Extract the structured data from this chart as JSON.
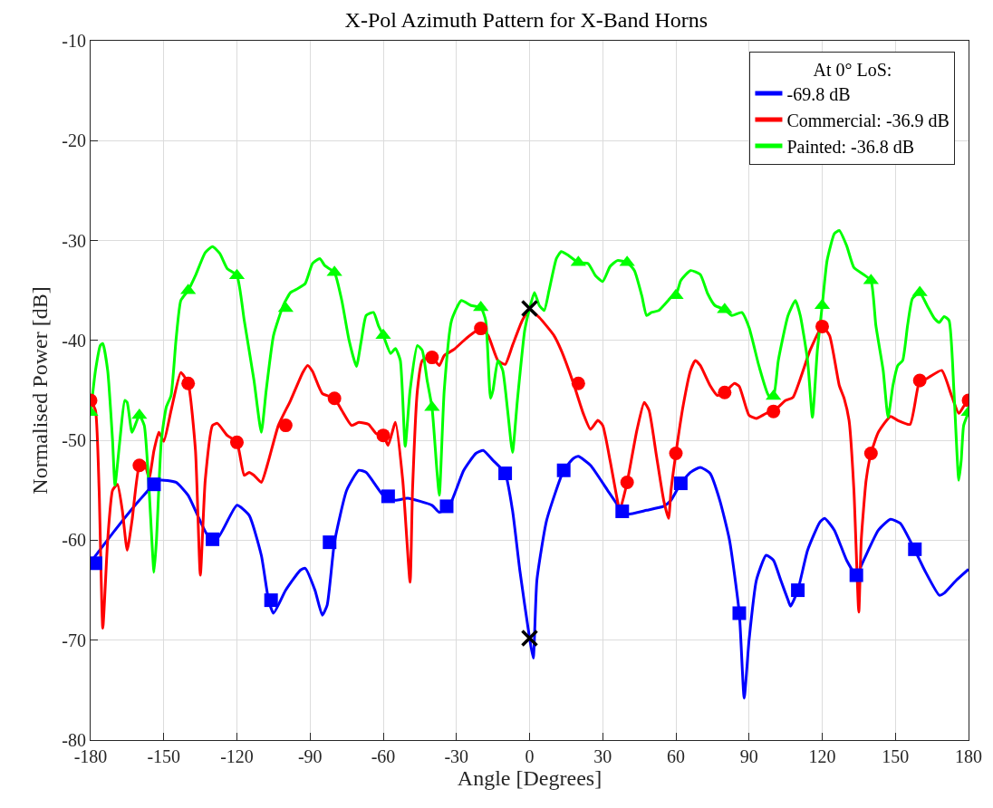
{
  "chart_data": {
    "type": "line",
    "title": "X-Pol Azimuth Pattern for X-Band Horns",
    "xlabel": "Angle [Degrees]",
    "ylabel": "Normalised Power [dB]",
    "legend_title": "At 0° LoS:",
    "xlim": [
      -180,
      180
    ],
    "xticks": [
      -180,
      -150,
      -120,
      -90,
      -60,
      -30,
      0,
      30,
      60,
      90,
      120,
      150,
      180
    ],
    "ylim": [
      -80,
      -10
    ],
    "yticks": [
      -80,
      -70,
      -60,
      -50,
      -40,
      -30,
      -20,
      -10
    ],
    "grid": true,
    "legend": "top right",
    "series": [
      {
        "name": "-69.8 dB",
        "color": "#0000ff",
        "x": [
          -180,
          -170,
          -160,
          -152,
          -145,
          -140,
          -132,
          -128,
          -120,
          -115,
          -110,
          -107,
          -105,
          -100,
          -94,
          -92,
          -88,
          -85,
          -83,
          -80,
          -75,
          -70,
          -67,
          -60,
          -55,
          -50,
          -40,
          -37,
          -33,
          -27,
          -22,
          -19,
          -15,
          -10,
          -7,
          -4,
          0,
          1.5,
          3,
          7,
          14,
          18,
          20,
          25,
          32,
          38,
          40,
          48,
          55,
          58,
          62,
          66,
          70,
          74,
          78,
          82,
          86,
          88,
          90,
          93,
          97,
          100,
          103,
          106,
          107,
          110,
          114,
          119,
          121,
          125,
          130,
          134,
          137,
          143,
          148,
          152,
          158,
          162,
          168,
          170,
          175,
          180
        ],
        "values": [
          -62.2,
          -59,
          -56,
          -54,
          -54.2,
          -55.5,
          -59.5,
          -59.8,
          -56.5,
          -57.5,
          -61.5,
          -66,
          -67.3,
          -65,
          -63,
          -62.8,
          -65,
          -67.5,
          -66.5,
          -60.2,
          -55,
          -53,
          -53.2,
          -55.5,
          -56,
          -55.8,
          -56.5,
          -57.2,
          -56.6,
          -53,
          -51.3,
          -51,
          -52,
          -53.3,
          -57,
          -63,
          -69.8,
          -71.8,
          -64,
          -58,
          -53,
          -51.8,
          -51.6,
          -52.5,
          -55,
          -57.1,
          -57.4,
          -57,
          -56.6,
          -56,
          -54.3,
          -53.2,
          -52.7,
          -53.3,
          -56,
          -60,
          -67.3,
          -75.8,
          -70,
          -64,
          -61.5,
          -62,
          -64,
          -66,
          -66.6,
          -65,
          -61,
          -58.2,
          -57.8,
          -59,
          -62,
          -63.5,
          -62,
          -59,
          -57.9,
          -58.3,
          -61,
          -63,
          -65.5,
          -65.3,
          -64,
          -62.9
        ]
      },
      {
        "name": "Commercial: -36.9 dB",
        "color": "#ff0000",
        "x": [
          -180,
          -178,
          -176.5,
          -175,
          -173,
          -171,
          -169,
          -167,
          -165,
          -163,
          -160,
          -158,
          -156,
          -154,
          -152,
          -150,
          -147,
          -143,
          -140,
          -137,
          -135,
          -133,
          -130,
          -128,
          -124,
          -120,
          -117,
          -115,
          -113,
          -110,
          -107,
          -103,
          -98,
          -93,
          -91,
          -89,
          -85,
          -80,
          -77,
          -73,
          -70,
          -66,
          -63,
          -60,
          -58,
          -55,
          -52,
          -49,
          -48,
          -46,
          -44,
          -40,
          -37,
          -35,
          -31,
          -26,
          -20,
          -17,
          -13,
          -10,
          -7,
          -3,
          0,
          4,
          10,
          13,
          18,
          22,
          25,
          28,
          30,
          33,
          36,
          37,
          40,
          44,
          47,
          49,
          52,
          55,
          57,
          58,
          60,
          63,
          66,
          68,
          70,
          74,
          77,
          80,
          84,
          86,
          90,
          93,
          97,
          100,
          105,
          108,
          115,
          120,
          123,
          127,
          129,
          131,
          133,
          135,
          136,
          138,
          140,
          143,
          148,
          151,
          156,
          160,
          163,
          169,
          173,
          176,
          178,
          180
        ],
        "values": [
          -46,
          -47,
          -55,
          -68.8,
          -60,
          -55,
          -54.4,
          -57,
          -61,
          -58,
          -52.5,
          -52.2,
          -53.8,
          -51,
          -49.2,
          -50.1,
          -47,
          -43.2,
          -44.3,
          -51,
          -63.5,
          -54,
          -48.5,
          -48.3,
          -49.5,
          -50.2,
          -53.5,
          -53.2,
          -53.5,
          -54.2,
          -52,
          -48.5,
          -46,
          -43.2,
          -42.5,
          -43.1,
          -45.3,
          -45.8,
          -47,
          -48.5,
          -48.2,
          -48.4,
          -49.3,
          -49.5,
          -50.5,
          -48.2,
          -54,
          -64.2,
          -55,
          -45,
          -42,
          -41.7,
          -42.5,
          -41.5,
          -40.9,
          -39.8,
          -38.8,
          -39.5,
          -42,
          -42.4,
          -40.5,
          -38,
          -36.9,
          -37.7,
          -39.5,
          -41,
          -44.3,
          -47.3,
          -48.9,
          -48,
          -48.5,
          -52,
          -56,
          -57,
          -54.2,
          -49,
          -46.2,
          -47,
          -51.5,
          -56,
          -57.8,
          -55,
          -51.3,
          -46.5,
          -43,
          -42,
          -42.5,
          -44.5,
          -45.5,
          -45.2,
          -44.3,
          -44.6,
          -47.5,
          -47.8,
          -47.3,
          -47.1,
          -46,
          -45.7,
          -41,
          -38.6,
          -39.5,
          -44.5,
          -45.8,
          -48,
          -55,
          -67.2,
          -60,
          -54,
          -51.3,
          -49.2,
          -47.6,
          -48,
          -48.4,
          -44,
          -43.8,
          -43,
          -45.5,
          -47.3,
          -46.6,
          -46
        ]
      },
      {
        "name": "Painted: -36.8 dB",
        "color": "#00ff00",
        "x": [
          -180,
          -178,
          -176,
          -175,
          -173,
          -171,
          -170,
          -168,
          -166,
          -165,
          -163,
          -160,
          -158,
          -156,
          -154,
          -153,
          -151,
          -149,
          -147,
          -145,
          -143,
          -140,
          -137,
          -133,
          -130,
          -127,
          -124,
          -120,
          -117,
          -113,
          -110,
          -108,
          -105,
          -101,
          -98,
          -95,
          -92,
          -89,
          -86,
          -84,
          -80,
          -77,
          -74,
          -71,
          -69,
          -67,
          -64,
          -62,
          -60,
          -57,
          -55,
          -53,
          -51,
          -49,
          -46,
          -44,
          -42,
          -40,
          -38,
          -37,
          -35,
          -32,
          -28,
          -24,
          -20,
          -18,
          -16,
          -15,
          -13,
          -11,
          -9,
          -7,
          -5,
          -2,
          0,
          2,
          4,
          6,
          8,
          11,
          13,
          16,
          20,
          24,
          27,
          30,
          33,
          36,
          40,
          43,
          46,
          48,
          50,
          53,
          55,
          58,
          60,
          62,
          66,
          70,
          73,
          76,
          80,
          83,
          87,
          90,
          94,
          98,
          100,
          102,
          106,
          109,
          111,
          114,
          116,
          118,
          120,
          122,
          125,
          127,
          130,
          133,
          137,
          140,
          142,
          145,
          147,
          149,
          151,
          153,
          155,
          157,
          160,
          163,
          166,
          168,
          170,
          172,
          174,
          176,
          177,
          178,
          180
        ],
        "values": [
          -47.2,
          -43,
          -40.5,
          -40.3,
          -43,
          -50,
          -54.5,
          -50,
          -46,
          -46.2,
          -49.2,
          -47.5,
          -48.5,
          -55,
          -63.2,
          -60,
          -50,
          -46.7,
          -45.5,
          -40,
          -36,
          -35,
          -33.5,
          -31.2,
          -30.6,
          -31.3,
          -32.8,
          -33.5,
          -38,
          -44,
          -49.2,
          -45,
          -39.5,
          -36.5,
          -35.2,
          -34.8,
          -34.3,
          -32.3,
          -31.8,
          -32.5,
          -33.2,
          -36,
          -40,
          -42.6,
          -40,
          -37.5,
          -37.2,
          -38.5,
          -39.5,
          -41.3,
          -40.8,
          -42,
          -50.6,
          -45,
          -40.5,
          -41,
          -44,
          -46.7,
          -53,
          -55.5,
          -45,
          -38,
          -36,
          -36.5,
          -36.7,
          -38,
          -45.8,
          -45,
          -42,
          -43,
          -47,
          -51.2,
          -46,
          -39,
          -36.8,
          -35.2,
          -36.5,
          -37,
          -35,
          -31.8,
          -31.1,
          -31.5,
          -32.2,
          -32.3,
          -33.5,
          -34.1,
          -32.6,
          -32,
          -32.2,
          -33,
          -35.5,
          -37.5,
          -37.2,
          -37,
          -36.5,
          -35.7,
          -35.5,
          -34,
          -33,
          -33.4,
          -35.3,
          -36.5,
          -36.9,
          -37.5,
          -37.2,
          -38.7,
          -42.5,
          -45.5,
          -45.6,
          -42,
          -37.5,
          -36,
          -37.5,
          -42,
          -47.7,
          -41,
          -36.5,
          -32,
          -29.3,
          -29,
          -30.5,
          -32.7,
          -33.4,
          -34,
          -38.5,
          -43,
          -47.7,
          -44.5,
          -42.5,
          -42,
          -38.5,
          -35.8,
          -35.2,
          -36.5,
          -37.8,
          -38.2,
          -37.6,
          -38,
          -45,
          -54,
          -52,
          -48.5,
          -47.2
        ]
      },
      {
        "type": "scatter",
        "color": "#0000ff",
        "marker": "square",
        "x": [
          -178,
          -154,
          -130,
          -106,
          -82,
          -58,
          -34,
          -10,
          14,
          38,
          62,
          86,
          110,
          134,
          158
        ],
        "values": [
          -62.3,
          -54.4,
          -59.9,
          -66,
          -60.2,
          -55.6,
          -56.6,
          -53.3,
          -53,
          -57.1,
          -54.3,
          -67.3,
          -65,
          -63.5,
          -60.9
        ]
      },
      {
        "type": "scatter",
        "color": "#ff0000",
        "marker": "circle",
        "x": [
          -180,
          -160,
          -140,
          -120,
          -100,
          -80,
          -60,
          -40,
          -20,
          0,
          20,
          40,
          60,
          80,
          100,
          120,
          140,
          160,
          180
        ],
        "values": [
          -46,
          -52.5,
          -44.3,
          -50.2,
          -48.5,
          -45.8,
          -49.5,
          -41.7,
          -38.8,
          null,
          -44.3,
          -54.2,
          -51.3,
          -45.2,
          -47.1,
          -38.6,
          -51.3,
          -44,
          -46
        ]
      },
      {
        "type": "scatter",
        "color": "#00ff00",
        "marker": "triangle",
        "x": [
          -180,
          -160,
          -140,
          -120,
          -100,
          -80,
          -60,
          -40,
          -20,
          0,
          20,
          40,
          60,
          80,
          100,
          120,
          140,
          160,
          180
        ],
        "values": [
          -47.2,
          -47.5,
          -35,
          -33.5,
          -36.8,
          -33.2,
          -39.5,
          -46.7,
          -36.7,
          null,
          -32.2,
          -32.2,
          -35.5,
          -36.9,
          -45.6,
          -36.5,
          -34,
          -35.2,
          -47.2
        ]
      },
      {
        "type": "scatter",
        "color": "#000000",
        "marker": "cross",
        "x": [
          0,
          0
        ],
        "values": [
          -36.8,
          -69.8
        ]
      }
    ]
  }
}
